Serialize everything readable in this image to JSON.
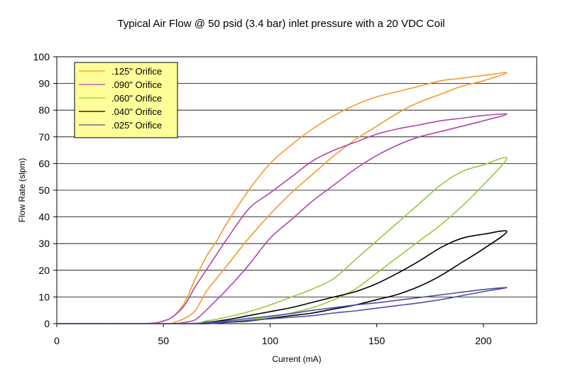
{
  "chart_data": {
    "type": "line",
    "title": "Typical Air Flow @ 50 psid (3.4 bar) inlet pressure  with a 20 VDC Coil",
    "xlabel": "Current (mA)",
    "ylabel": "Flow Rate (slpm)",
    "xlim": [
      0,
      225
    ],
    "ylim": [
      0,
      100
    ],
    "xticks": [
      0,
      50,
      100,
      150,
      200
    ],
    "yticks": [
      0,
      10,
      20,
      30,
      40,
      50,
      60,
      70,
      80,
      90,
      100
    ],
    "grid": "horizontal",
    "legend_position": "top-left",
    "legend_bg": "#FFFF99",
    "series": [
      {
        "name": ".125\" Orifice",
        "color": "#F39A2B",
        "x": [
          0,
          40,
          50,
          55,
          60,
          65,
          70,
          75,
          80,
          90,
          100,
          110,
          120,
          130,
          140,
          150,
          160,
          170,
          180,
          190,
          200,
          211,
          200,
          190,
          180,
          170,
          160,
          150,
          140,
          130,
          120,
          110,
          100,
          90,
          80,
          75,
          70,
          65,
          60,
          55,
          50,
          0
        ],
        "y": [
          0,
          0,
          1,
          3,
          8,
          17,
          25,
          31,
          38,
          50,
          60,
          67,
          73,
          78,
          82,
          85,
          87,
          89,
          91,
          92,
          93,
          94,
          91,
          89,
          86,
          83,
          79,
          74,
          69,
          63,
          56,
          49,
          41,
          32,
          22,
          17,
          12,
          5,
          2,
          0.5,
          0,
          0
        ]
      },
      {
        "name": ".090\" Orifice",
        "color": "#B146A8",
        "x": [
          0,
          40,
          50,
          55,
          60,
          65,
          70,
          75,
          80,
          90,
          100,
          110,
          120,
          130,
          140,
          150,
          160,
          170,
          180,
          190,
          200,
          211,
          200,
          190,
          180,
          170,
          160,
          150,
          140,
          130,
          120,
          110,
          100,
          90,
          80,
          75,
          70,
          65,
          60,
          55,
          50,
          0
        ],
        "y": [
          0,
          0,
          1,
          3,
          7,
          14,
          20,
          26,
          32,
          43,
          49,
          55,
          61,
          65,
          68,
          71,
          73,
          74.5,
          76,
          77,
          78,
          78.5,
          76,
          74,
          72,
          70,
          67,
          63,
          58,
          52,
          46,
          39,
          32,
          22,
          13,
          9,
          5,
          1.5,
          0.5,
          0,
          0,
          0
        ]
      },
      {
        "name": ".060\" Orifice",
        "color": "#96C93D",
        "x": [
          0,
          60,
          70,
          80,
          90,
          100,
          110,
          120,
          130,
          140,
          150,
          160,
          170,
          180,
          190,
          200,
          211,
          200,
          190,
          180,
          170,
          160,
          150,
          140,
          130,
          120,
          110,
          100,
          90,
          80,
          70,
          60,
          0
        ],
        "y": [
          0,
          0,
          1,
          2.5,
          4.5,
          7,
          10,
          13,
          17,
          24,
          31,
          38,
          45,
          52,
          57,
          59.5,
          62,
          52,
          44,
          37,
          31,
          25,
          19,
          13,
          9,
          6,
          4,
          2.5,
          1.5,
          0.5,
          0,
          0,
          0
        ]
      },
      {
        "name": ".040\" Orifice",
        "color": "#000000",
        "x": [
          0,
          60,
          70,
          80,
          90,
          100,
          110,
          120,
          130,
          140,
          150,
          160,
          170,
          180,
          190,
          200,
          211,
          200,
          190,
          180,
          170,
          160,
          150,
          140,
          130,
          120,
          110,
          100,
          90,
          80,
          70,
          60,
          0
        ],
        "y": [
          0,
          0,
          0.5,
          1.5,
          3,
          4.5,
          6,
          8,
          10,
          12,
          15,
          19,
          23.5,
          28.5,
          32,
          33.5,
          34.5,
          28,
          23,
          18,
          14,
          11,
          9,
          7,
          5.5,
          4,
          3,
          2,
          1,
          0.5,
          0,
          0,
          0
        ]
      },
      {
        "name": ".025\" Orifice",
        "color": "#4E4FA3",
        "x": [
          0,
          12,
          60,
          70,
          80,
          90,
          100,
          110,
          120,
          130,
          140,
          150,
          160,
          170,
          180,
          190,
          200,
          211,
          200,
          190,
          180,
          170,
          160,
          150,
          140,
          130,
          120,
          110,
          100,
          90,
          80,
          70,
          60,
          0
        ],
        "y": [
          0,
          0,
          0,
          0.5,
          1,
          2,
          2.8,
          3.8,
          5,
          6,
          7,
          7.8,
          8.8,
          9.8,
          10.8,
          11.8,
          12.8,
          13.5,
          12,
          10.5,
          9,
          7.8,
          6.8,
          5.8,
          4.8,
          4,
          3,
          2.4,
          1.8,
          1.2,
          0.6,
          0.2,
          0,
          0
        ]
      }
    ]
  }
}
